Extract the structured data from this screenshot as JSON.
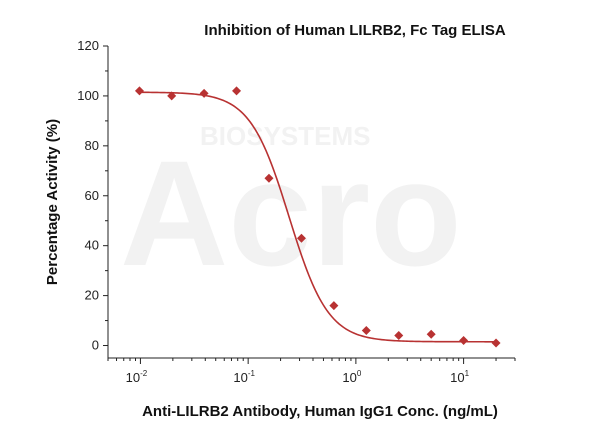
{
  "chart_data": {
    "type": "scatter",
    "title": "Inhibition of Human LILRB2, Fc Tag ELISA",
    "xlabel": "Anti-LILRB2 Antibody, Human IgG1 Conc. (ng/mL)",
    "ylabel": "Percentage Activity (%)",
    "x_scale": "log",
    "xlim": [
      0.005,
      30
    ],
    "ylim": [
      -5,
      120
    ],
    "x_ticks": [
      {
        "base": "10",
        "exp": "-2",
        "value": 0.01
      },
      {
        "base": "10",
        "exp": "-1",
        "value": 0.1
      },
      {
        "base": "10",
        "exp": "0",
        "value": 1
      },
      {
        "base": "10",
        "exp": "1",
        "value": 10
      }
    ],
    "y_ticks": [
      "0",
      "20",
      "40",
      "60",
      "80",
      "100",
      "120"
    ],
    "series": [
      {
        "x": [
          0.0098,
          0.0195,
          0.039,
          0.078,
          0.156,
          0.3125,
          0.625,
          1.25,
          2.5,
          5,
          10,
          20
        ],
        "y": [
          102,
          100,
          101,
          102,
          67,
          43,
          16,
          6,
          4,
          4.5,
          2,
          1
        ],
        "marker": "diamond",
        "color": "#b83232"
      }
    ],
    "fit_curve": {
      "type": "4PL",
      "top": 101.5,
      "bottom": 1.5,
      "ic50": 0.24,
      "hill": 2.4,
      "color": "#b83232"
    },
    "watermark": {
      "logo": "Acro",
      "text": "BIOSYSTEMS"
    }
  }
}
